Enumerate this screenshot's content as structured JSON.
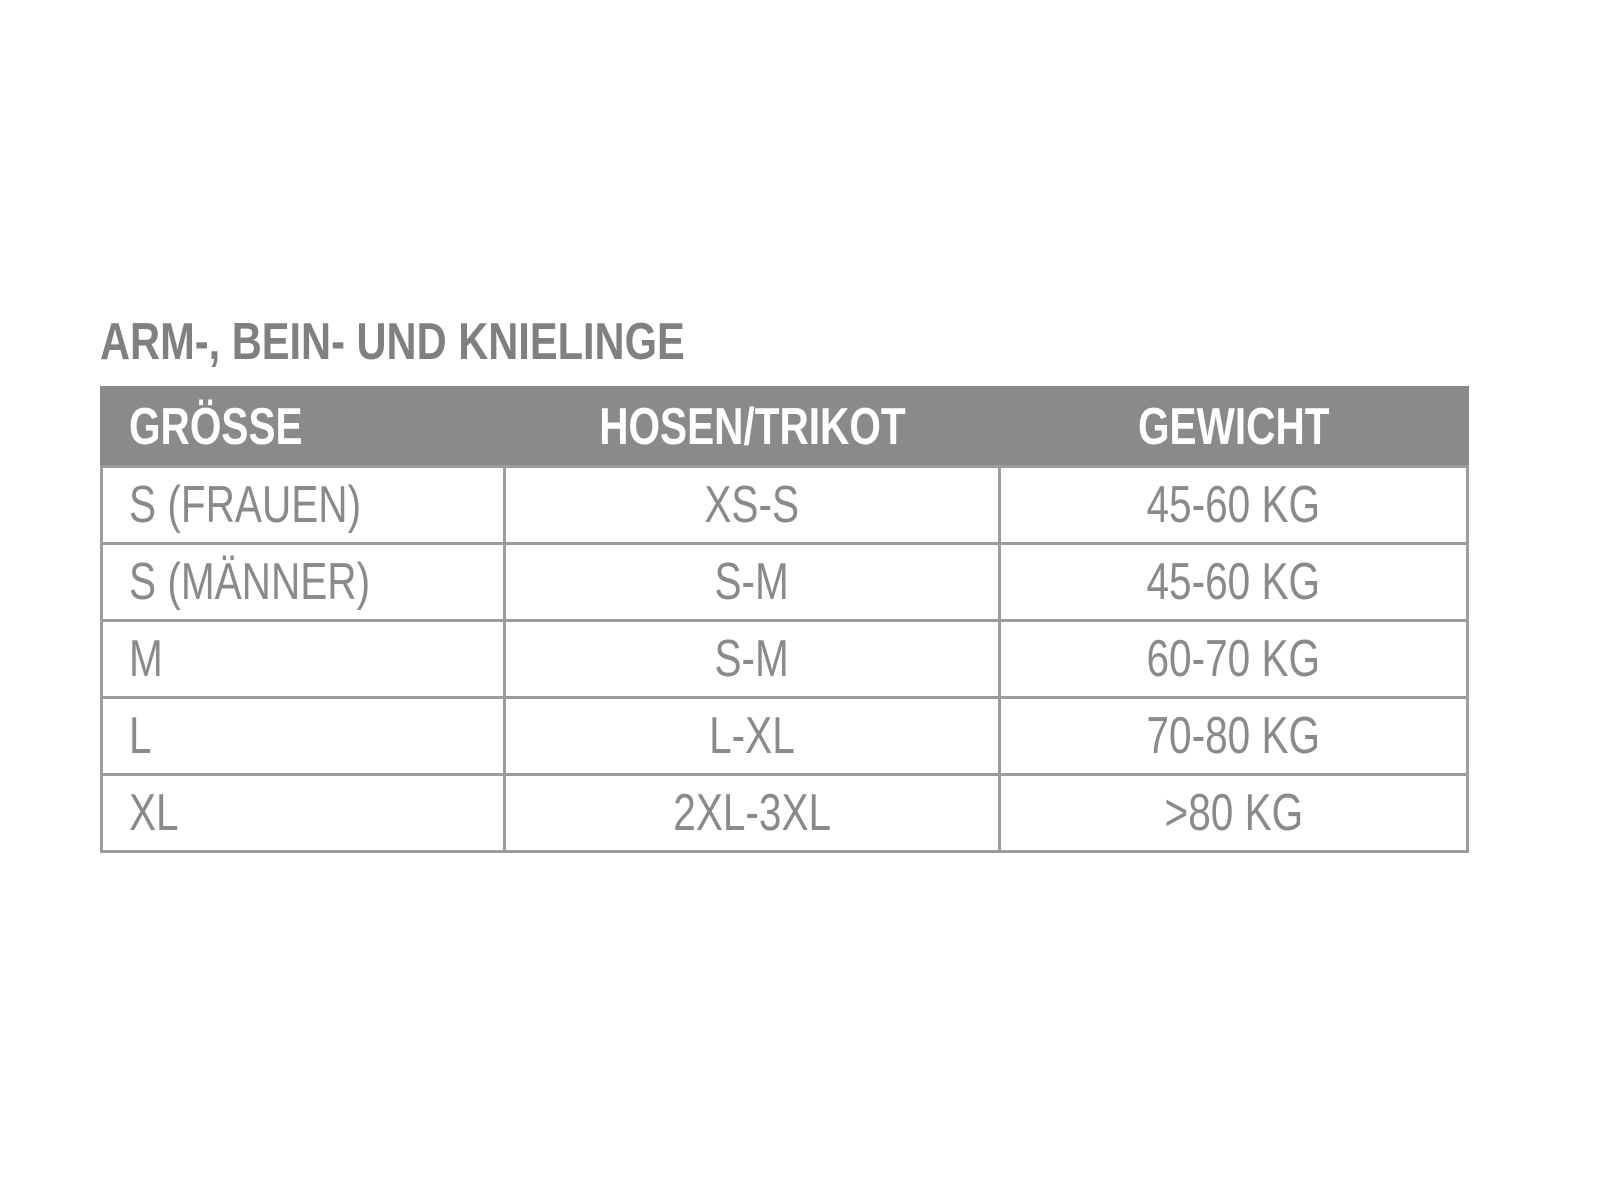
{
  "title": "ARM-, BEIN- UND KNIELINGE",
  "colors": {
    "header_bg": "#8a8a8a",
    "text": "#8a8a8a",
    "border": "#9c9c9c"
  },
  "table": {
    "headers": [
      "GRÖSSE",
      "HOSEN/TRIKOT",
      "GEWICHT"
    ],
    "rows": [
      [
        "S (FRAUEN)",
        "XS-S",
        "45-60 KG"
      ],
      [
        "S (MÄNNER)",
        "S-M",
        "45-60 KG"
      ],
      [
        "M",
        "S-M",
        "60-70 KG"
      ],
      [
        "L",
        "L-XL",
        "70-80 KG"
      ],
      [
        "XL",
        "2XL-3XL",
        ">80 KG"
      ]
    ]
  }
}
